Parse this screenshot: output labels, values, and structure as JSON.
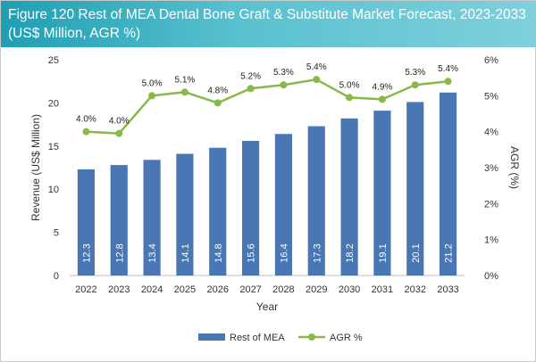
{
  "chart_data": {
    "type": "bar+line",
    "title": "Figure 120 Rest of MEA Dental Bone Graft & Substitute Market Forecast, 2023-2033 (US$ Million, AGR %)",
    "xlabel": "Year",
    "ylabel": "Revenue (US$ Million)",
    "y2label": "AGR (%)",
    "categories": [
      "2022",
      "2023",
      "2024",
      "2025",
      "2026",
      "2027",
      "2028",
      "2029",
      "2030",
      "2031",
      "2032",
      "2033"
    ],
    "ylim": [
      0,
      25
    ],
    "yticks": [
      "0",
      "5",
      "10",
      "15",
      "20",
      "25"
    ],
    "y2lim": [
      0,
      6
    ],
    "y2ticks": [
      "0%",
      "1%",
      "2%",
      "3%",
      "4%",
      "5%",
      "6%"
    ],
    "series": [
      {
        "name": "Rest of MEA",
        "kind": "bar",
        "color": "#4a77b4",
        "values": [
          12.3,
          12.8,
          13.4,
          14.1,
          14.8,
          15.6,
          16.4,
          17.3,
          18.2,
          19.1,
          20.1,
          21.2
        ],
        "labels": [
          "12.3",
          "12.8",
          "13.4",
          "14.1",
          "14.8",
          "15.6",
          "16.4",
          "17.3",
          "18.2",
          "19.1",
          "20.1",
          "21.2"
        ]
      },
      {
        "name": "AGR %",
        "kind": "line",
        "axis": "y2",
        "color": "#8ab84a",
        "values": [
          4.0,
          3.95,
          5.0,
          5.1,
          4.8,
          5.2,
          5.3,
          5.45,
          4.95,
          4.9,
          5.3,
          5.4
        ],
        "labels": [
          "4.0%",
          "4.0%",
          "5.0%",
          "5.1%",
          "4.8%",
          "5.2%",
          "5.3%",
          "5.4%",
          "5.0%",
          "4.9%",
          "5.3%",
          "5.4%"
        ]
      }
    ],
    "legend": [
      "Rest of MEA",
      "AGR %"
    ],
    "grid": false
  }
}
